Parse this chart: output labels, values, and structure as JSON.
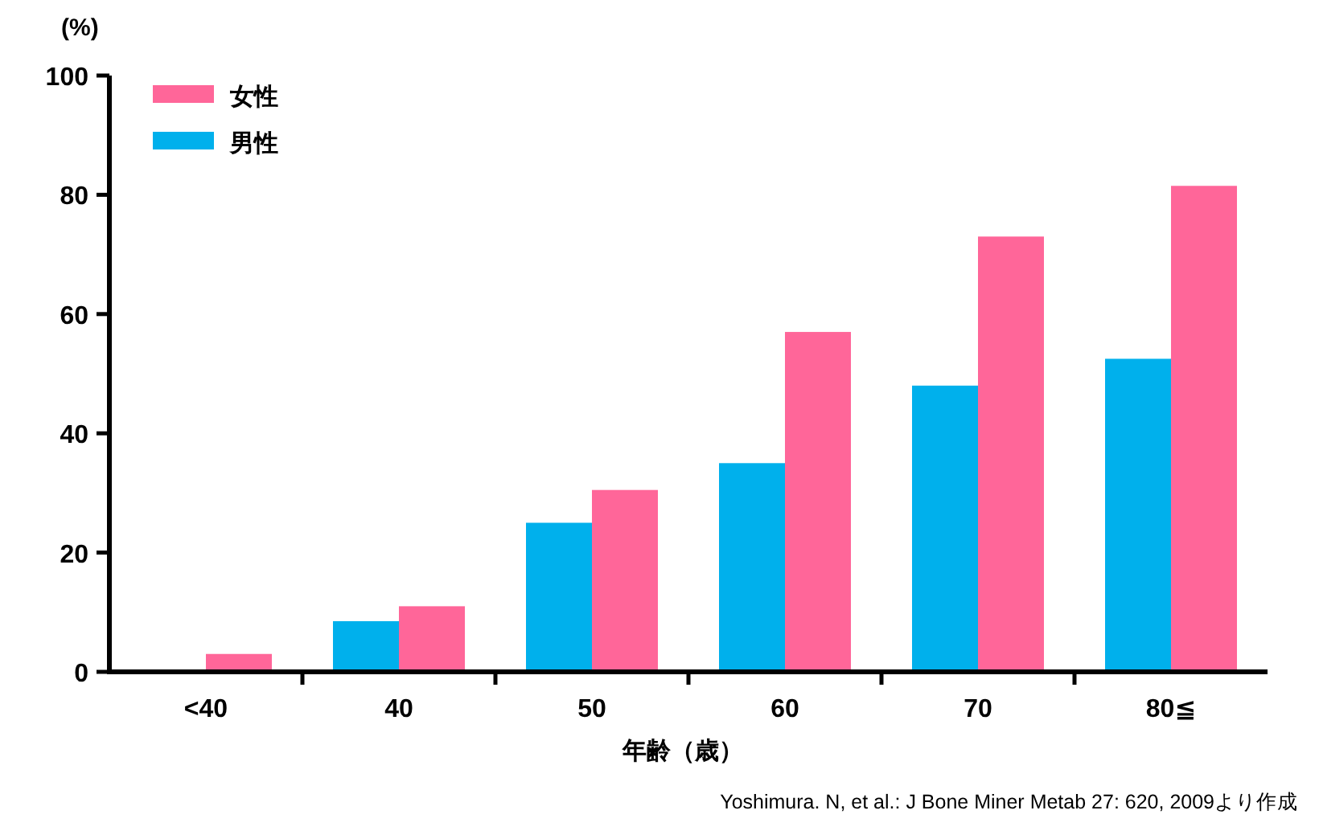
{
  "chart_data": {
    "type": "bar",
    "ylabel": "(%)",
    "xlabel": "年齢（歳）",
    "categories": [
      "<40",
      "40",
      "50",
      "60",
      "70",
      "80≦"
    ],
    "series": [
      {
        "name": "女性",
        "color": "#ff6699",
        "values": [
          3,
          11,
          30.5,
          57,
          73,
          81.5
        ]
      },
      {
        "name": "男性",
        "color": "#00b0ec",
        "values": [
          null,
          8.5,
          25,
          35,
          48,
          52.5
        ]
      }
    ],
    "ylim": [
      0,
      100
    ],
    "yticks": [
      0,
      20,
      40,
      60,
      80,
      100
    ],
    "legend": "top left",
    "annotations": [
      "Yoshimura. N, et al.: J Bone Miner Metab 27: 620, 2009より作成"
    ]
  }
}
